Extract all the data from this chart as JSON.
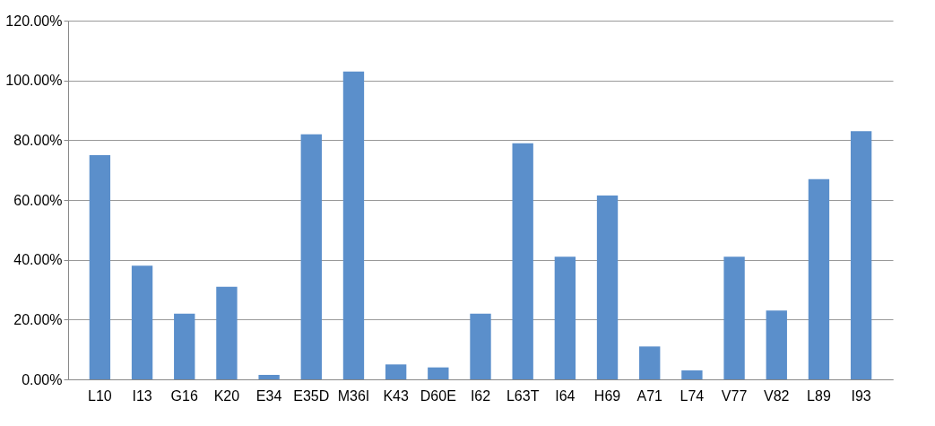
{
  "chart_data": {
    "type": "bar",
    "categories": [
      "L10",
      "I13",
      "G16",
      "K20",
      "E34",
      "E35D",
      "M36I",
      "K43",
      "D60E",
      "I62",
      "L63T",
      "I64",
      "H69",
      "A71",
      "L74",
      "V77",
      "V82",
      "L89",
      "I93"
    ],
    "values": [
      75,
      38,
      22,
      31,
      1.5,
      82,
      103,
      5,
      4,
      22,
      79,
      41,
      61.5,
      11,
      3,
      41,
      23,
      67,
      83
    ],
    "color": "#5b8fcb",
    "ylim": [
      0,
      120
    ],
    "yticks": [
      {
        "value": 0,
        "label": "0.00%"
      },
      {
        "value": 20,
        "label": "20.00%"
      },
      {
        "value": 40,
        "label": "40.00%"
      },
      {
        "value": 60,
        "label": "60.00%"
      },
      {
        "value": 80,
        "label": "80.00%"
      },
      {
        "value": 100,
        "label": "100.00%"
      },
      {
        "value": 120,
        "label": "120.00%"
      }
    ],
    "grid": true
  }
}
